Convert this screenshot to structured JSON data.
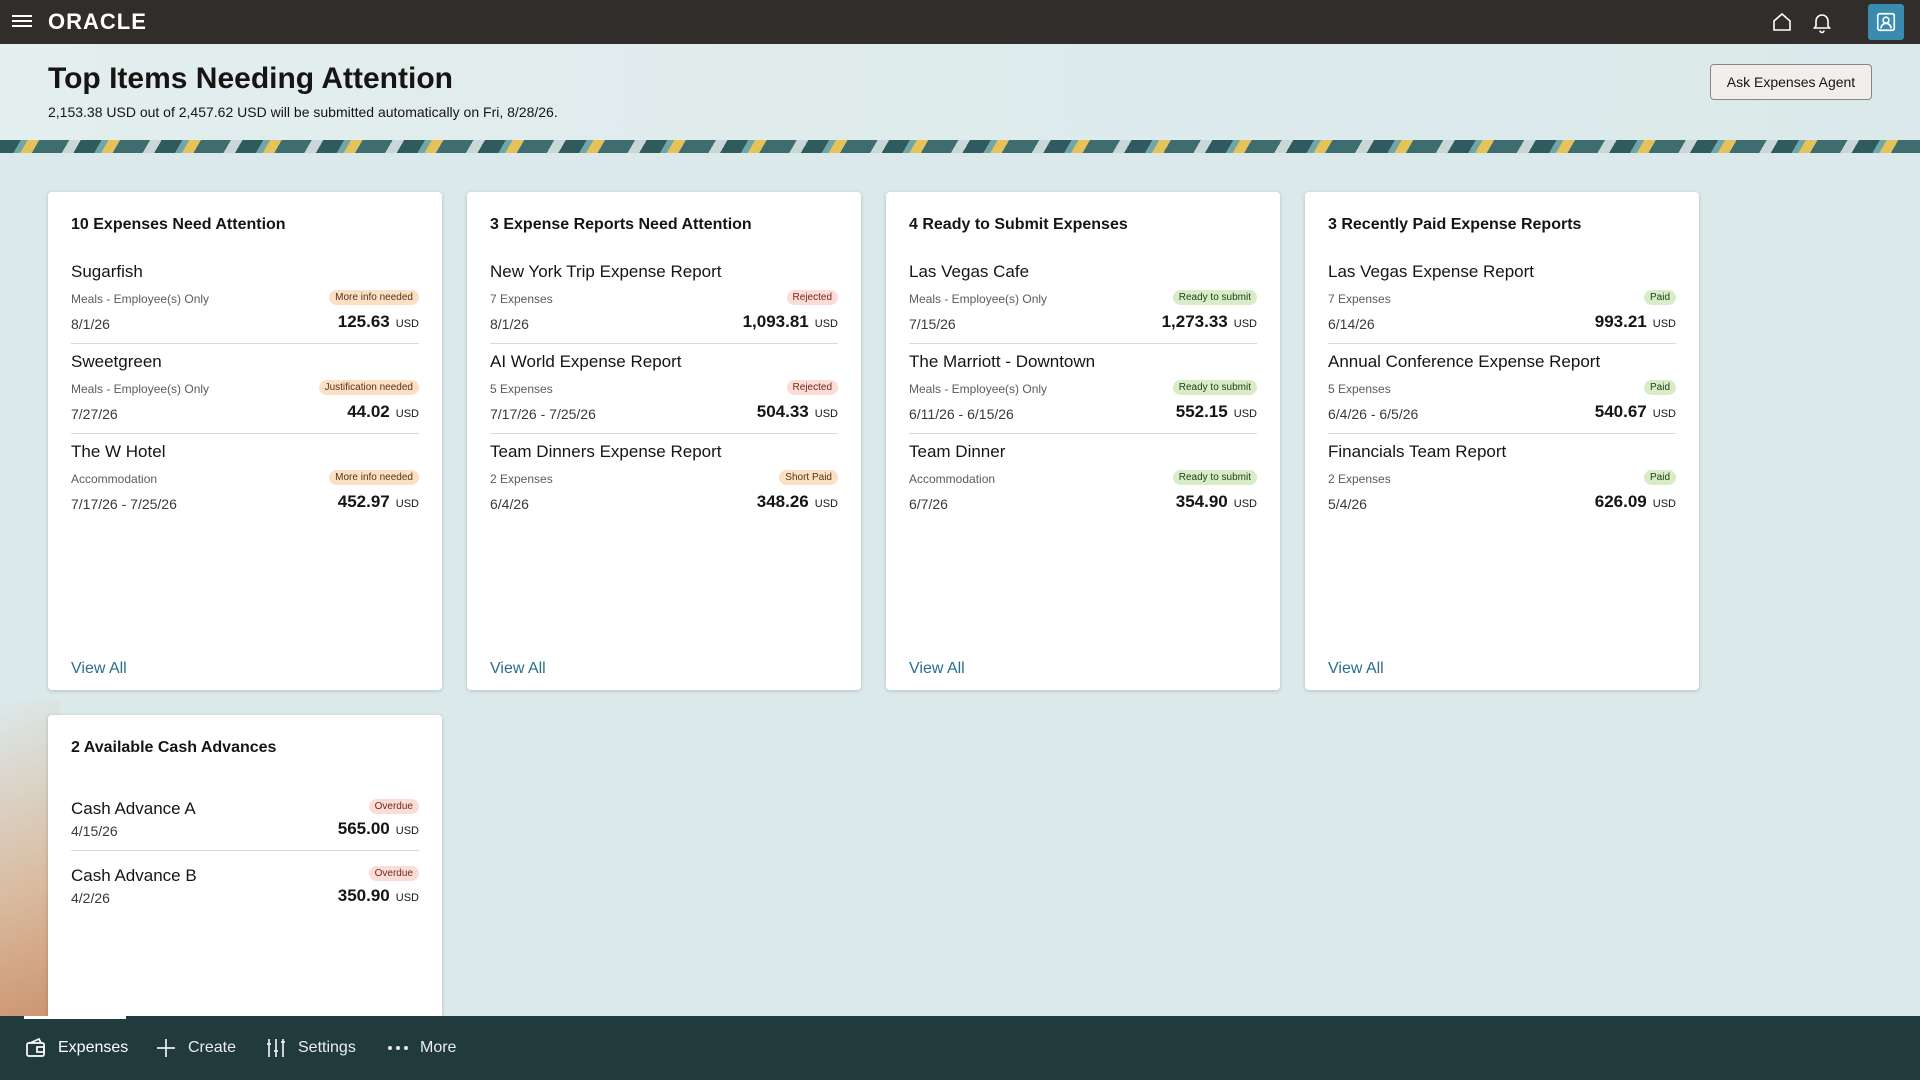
{
  "app": {
    "brand": "ORACLE"
  },
  "header": {
    "title": "Top Items Needing Attention",
    "subtitle": "2,153.38 USD out of 2,457.62 USD will be submitted automatically on Fri, 8/28/26.",
    "agent_button": "Ask Expenses Agent"
  },
  "cards": [
    {
      "title": "10 Expenses Need Attention",
      "view_all": "View All",
      "items": [
        {
          "name": "Sugarfish",
          "category": "Meals - Employee(s) Only",
          "date": "8/1/26",
          "badge": "More info needed",
          "amount": "125.63",
          "currency": "USD"
        },
        {
          "name": "Sweetgreen",
          "category": "Meals - Employee(s) Only",
          "date": "7/27/26",
          "badge": "Justification needed",
          "amount": "44.02",
          "currency": "USD"
        },
        {
          "name": "The W Hotel",
          "category": "Accommodation",
          "date": "7/17/26 - 7/25/26",
          "badge": "More info needed",
          "amount": "452.97",
          "currency": "USD"
        }
      ]
    },
    {
      "title": "3 Expense Reports Need Attention",
      "view_all": "View All",
      "items": [
        {
          "name": "New York Trip Expense Report",
          "category": "7 Expenses",
          "date": "8/1/26",
          "badge": "Rejected",
          "amount": "1,093.81",
          "currency": "USD"
        },
        {
          "name": "AI World Expense Report",
          "category": "5 Expenses",
          "date": "7/17/26 - 7/25/26",
          "badge": "Rejected",
          "amount": "504.33",
          "currency": "USD"
        },
        {
          "name": "Team Dinners Expense Report",
          "category": "2 Expenses",
          "date": "6/4/26",
          "badge": "Short Paid",
          "amount": "348.26",
          "currency": "USD"
        }
      ]
    },
    {
      "title": "4 Ready to Submit Expenses",
      "view_all": "View All",
      "items": [
        {
          "name": "Las Vegas Cafe",
          "category": "Meals - Employee(s) Only",
          "date": "7/15/26",
          "badge": "Ready to submit",
          "amount": "1,273.33",
          "currency": "USD"
        },
        {
          "name": "The Marriott - Downtown",
          "category": "Meals - Employee(s) Only",
          "date": "6/11/26 - 6/15/26",
          "badge": "Ready to submit",
          "amount": "552.15",
          "currency": "USD"
        },
        {
          "name": "Team Dinner",
          "category": "Accommodation",
          "date": "6/7/26",
          "badge": "Ready to submit",
          "amount": "354.90",
          "currency": "USD"
        }
      ]
    },
    {
      "title": "3 Recently Paid Expense Reports",
      "view_all": "View All",
      "items": [
        {
          "name": "Las Vegas Expense Report",
          "category": "7 Expenses",
          "date": "6/14/26",
          "badge": "Paid",
          "amount": "993.21",
          "currency": "USD"
        },
        {
          "name": "Annual Conference Expense Report",
          "category": "5 Expenses",
          "date": "6/4/26 - 6/5/26",
          "badge": "Paid",
          "amount": "540.67",
          "currency": "USD"
        },
        {
          "name": "Financials Team Report",
          "category": "2 Expenses",
          "date": "5/4/26",
          "badge": "Paid",
          "amount": "626.09",
          "currency": "USD"
        }
      ]
    }
  ],
  "cash_advances": {
    "title": "2 Available Cash Advances",
    "items": [
      {
        "name": "Cash Advance A",
        "date": "4/15/26",
        "badge": "Overdue",
        "amount": "565.00",
        "currency": "USD"
      },
      {
        "name": "Cash Advance B",
        "date": "4/2/26",
        "badge": "Overdue",
        "amount": "350.90",
        "currency": "USD"
      }
    ]
  },
  "bottom_nav": {
    "expenses": "Expenses",
    "create": "Create",
    "settings": "Settings",
    "more": "More"
  },
  "colors": {
    "topbar": "#312d2a",
    "bottombar": "#213a3d",
    "link": "#2a6e8f"
  }
}
